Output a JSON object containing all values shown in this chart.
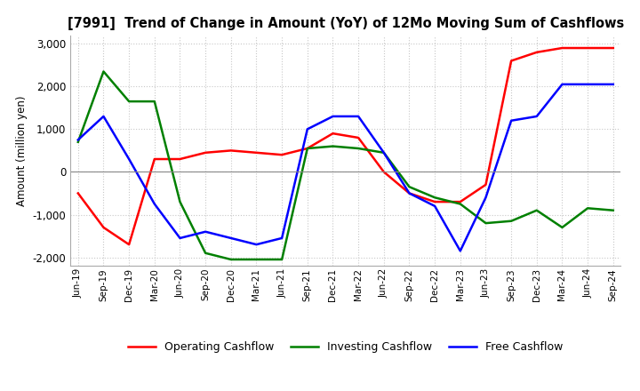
{
  "title": "[7991]  Trend of Change in Amount (YoY) of 12Mo Moving Sum of Cashflows",
  "ylabel": "Amount (million yen)",
  "ylim": [
    -2200,
    3200
  ],
  "yticks": [
    -2000,
    -1000,
    0,
    1000,
    2000,
    3000
  ],
  "x_labels": [
    "Jun-19",
    "Sep-19",
    "Dec-19",
    "Mar-20",
    "Jun-20",
    "Sep-20",
    "Dec-20",
    "Mar-21",
    "Jun-21",
    "Sep-21",
    "Dec-21",
    "Mar-22",
    "Jun-22",
    "Sep-22",
    "Dec-22",
    "Mar-23",
    "Jun-23",
    "Sep-23",
    "Dec-23",
    "Mar-24",
    "Jun-24",
    "Sep-24"
  ],
  "operating": [
    -500,
    -1300,
    -1700,
    300,
    300,
    450,
    500,
    450,
    400,
    550,
    900,
    800,
    0,
    -500,
    -700,
    -700,
    -300,
    2600,
    2800,
    2900,
    2900,
    2900
  ],
  "investing": [
    700,
    2350,
    1650,
    1650,
    -700,
    -1900,
    -2050,
    -2050,
    -2050,
    550,
    600,
    550,
    450,
    -350,
    -600,
    -750,
    -1200,
    -1150,
    -900,
    -1300,
    -850,
    -900
  ],
  "free": [
    750,
    1300,
    300,
    -750,
    -1550,
    -1400,
    -1550,
    -1700,
    -1550,
    1000,
    1300,
    1300,
    450,
    -500,
    -800,
    -1850,
    -600,
    1200,
    1300,
    2050,
    2050,
    2050
  ],
  "operating_color": "#ff0000",
  "investing_color": "#008000",
  "free_color": "#0000ff",
  "background_color": "#ffffff",
  "grid_color": "#c8c8c8"
}
